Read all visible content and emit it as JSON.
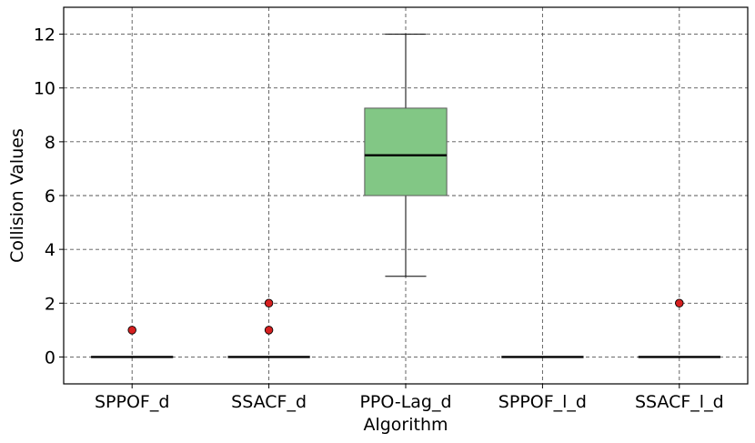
{
  "chart_data": {
    "type": "box",
    "xlabel": "Algorithm",
    "ylabel": "Collision Values",
    "ylim": [
      -1,
      13
    ],
    "yticks": [
      0,
      2,
      4,
      6,
      8,
      10,
      12
    ],
    "grid": true,
    "categories": [
      "SPPOF_d",
      "SSACF_d",
      "PPO-Lag_d",
      "SPPOF_l_d",
      "SSACF_l_d"
    ],
    "boxes": [
      {
        "category": "SPPOF_d",
        "whisker_low": 0,
        "q1": 0,
        "median": 0,
        "q3": 0,
        "whisker_high": 0,
        "outliers": [
          1
        ]
      },
      {
        "category": "SSACF_d",
        "whisker_low": 0,
        "q1": 0,
        "median": 0,
        "q3": 0,
        "whisker_high": 0,
        "outliers": [
          1,
          2
        ]
      },
      {
        "category": "PPO-Lag_d",
        "whisker_low": 3,
        "q1": 6,
        "median": 7.5,
        "q3": 9.25,
        "whisker_high": 12,
        "outliers": []
      },
      {
        "category": "SPPOF_l_d",
        "whisker_low": 0,
        "q1": 0,
        "median": 0,
        "q3": 0,
        "whisker_high": 0,
        "outliers": []
      },
      {
        "category": "SSACF_l_d",
        "whisker_low": 0,
        "q1": 0,
        "median": 0,
        "q3": 0,
        "whisker_high": 0,
        "outliers": [
          2
        ]
      }
    ],
    "colors": {
      "box_fill": "#82c785",
      "box_edge": "#5a5a5a",
      "median": "#000000",
      "outlier_fill": "#d62020",
      "grid": "#555555"
    }
  }
}
